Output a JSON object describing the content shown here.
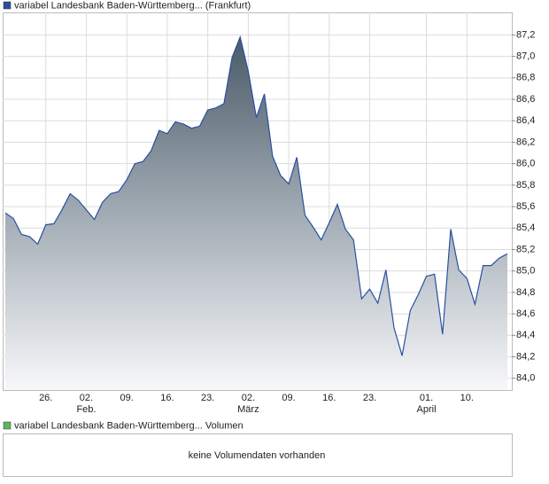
{
  "chart_data": {
    "type": "area",
    "title": "variabel Landesbank Baden-Württemberg... (Frankfurt)",
    "color": "#2a4fa0",
    "legend_color": "#2a4fa0",
    "categories": [
      null,
      null,
      null,
      null,
      null,
      "26.",
      null,
      null,
      null,
      null,
      "02.",
      null,
      null,
      null,
      null,
      "09.",
      null,
      null,
      null,
      null,
      "16.",
      null,
      null,
      null,
      null,
      "23.",
      null,
      null,
      null,
      null,
      "02.",
      null,
      null,
      null,
      null,
      "09.",
      null,
      null,
      null,
      null,
      "16.",
      null,
      null,
      null,
      null,
      "23.",
      null,
      null,
      null,
      null,
      null,
      null,
      "01.",
      null,
      null,
      null,
      null,
      "10.",
      null,
      null,
      null,
      null,
      null
    ],
    "months": [
      {
        "index": 10,
        "label": "Feb."
      },
      {
        "index": 30,
        "label": "März"
      },
      {
        "index": 52,
        "label": "April"
      }
    ],
    "values": [
      85.54,
      85.49,
      85.34,
      85.32,
      85.25,
      85.43,
      85.44,
      85.57,
      85.72,
      85.66,
      85.57,
      85.48,
      85.64,
      85.72,
      85.74,
      85.85,
      86.0,
      86.02,
      86.12,
      86.31,
      86.28,
      86.39,
      86.37,
      86.33,
      86.35,
      86.5,
      86.52,
      86.56,
      86.99,
      87.18,
      86.86,
      86.43,
      86.65,
      86.07,
      85.89,
      85.81,
      86.06,
      85.52,
      85.41,
      85.29,
      85.45,
      85.62,
      85.39,
      85.29,
      84.74,
      84.83,
      84.7,
      85.01,
      84.47,
      84.21,
      84.63,
      84.78,
      84.95,
      84.97,
      84.41,
      85.39,
      85.01,
      84.93,
      84.69,
      85.05,
      85.05,
      85.12,
      85.16
    ],
    "ylim": [
      83.89,
      87.41
    ],
    "yticks": [
      {
        "value": 84.0,
        "label": "84,0"
      },
      {
        "value": 84.2,
        "label": "84,2"
      },
      {
        "value": 84.4,
        "label": "84,4"
      },
      {
        "value": 84.6,
        "label": "84,6"
      },
      {
        "value": 84.8,
        "label": "84,8"
      },
      {
        "value": 85.0,
        "label": "85,0"
      },
      {
        "value": 85.2,
        "label": "85,2"
      },
      {
        "value": 85.4,
        "label": "85,4"
      },
      {
        "value": 85.6,
        "label": "85,6"
      },
      {
        "value": 85.8,
        "label": "85,8"
      },
      {
        "value": 86.0,
        "label": "86,0"
      },
      {
        "value": 86.2,
        "label": "86,2"
      },
      {
        "value": 86.4,
        "label": "86,4"
      },
      {
        "value": 86.6,
        "label": "86,6"
      },
      {
        "value": 86.8,
        "label": "86,8"
      },
      {
        "value": 87.0,
        "label": "87,0"
      },
      {
        "value": 87.2,
        "label": "87,2"
      }
    ],
    "grid": true,
    "volume": {
      "title": "variabel Landesbank Baden-Württemberg... Volumen",
      "legend_color": "#5cb85c",
      "message": "keine Volumendaten vorhanden"
    }
  }
}
